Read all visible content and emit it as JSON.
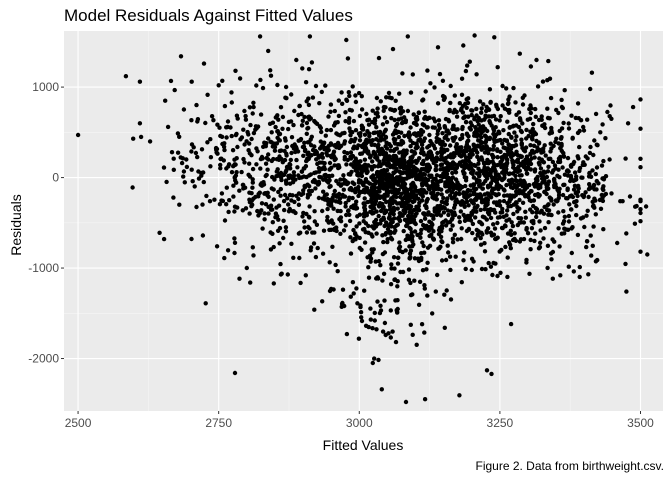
{
  "chart_data": {
    "type": "scatter",
    "title": "Model Residuals Against Fitted Values",
    "xlabel": "Fitted Values",
    "ylabel": "Residuals",
    "caption": "Figure 2. Data from birthweight.csv.",
    "xlim": [
      2475,
      3540
    ],
    "ylim": [
      -2580,
      1620
    ],
    "x_ticks": [
      2500,
      2750,
      3000,
      3250,
      3500
    ],
    "y_ticks": [
      -2000,
      -1000,
      0,
      1000
    ],
    "x_tick_labels": [
      "2500",
      "2750",
      "3000",
      "3250",
      "3500"
    ],
    "y_tick_labels": [
      "-2000",
      "-1000",
      "0",
      "1000"
    ],
    "grid": true,
    "legend": "none",
    "colors": {
      "panel": "#ebebeb",
      "grid_major": "#ffffff",
      "grid_minor": "#f5f5f5",
      "point": "#000000",
      "tick_label": "#4d4d4d"
    },
    "series": [
      {
        "points": [
          [
            2500,
            470
          ],
          [
            2585,
            1120
          ],
          [
            2597,
            -110
          ],
          [
            2598,
            430
          ],
          [
            2610,
            1060
          ],
          [
            2612,
            450
          ],
          [
            2610,
            600
          ],
          [
            2628,
            400
          ],
          [
            2645,
            -610
          ],
          [
            2653,
            -680
          ],
          [
            2655,
            850
          ],
          [
            2660,
            560
          ],
          [
            2667,
            280
          ],
          [
            2680,
            -300
          ],
          [
            2683,
            1340
          ],
          [
            2685,
            160
          ],
          [
            2702,
            1060
          ],
          [
            2712,
            620
          ],
          [
            2722,
            -640
          ],
          [
            2724,
            1260
          ],
          [
            2727,
            -1390
          ],
          [
            2750,
            1020
          ],
          [
            2760,
            -890
          ],
          [
            2779,
            -2160
          ],
          [
            2780,
            1180
          ],
          [
            2800,
            -1000
          ],
          [
            2812,
            -860
          ],
          [
            2838,
            1400
          ],
          [
            2848,
            -1170
          ],
          [
            2888,
            1300
          ],
          [
            2905,
            -1080
          ],
          [
            2920,
            -1460
          ],
          [
            2950,
            -1230
          ],
          [
            2977,
            1520
          ],
          [
            2978,
            -1730
          ],
          [
            2990,
            -1280
          ],
          [
            3035,
            1320
          ],
          [
            3040,
            -2340
          ],
          [
            3060,
            1420
          ],
          [
            3083,
            -2480
          ],
          [
            3117,
            -2450
          ],
          [
            3140,
            1440
          ],
          [
            3152,
            -1660
          ],
          [
            3162,
            -1020
          ],
          [
            3185,
            1460
          ],
          [
            3205,
            1570
          ],
          [
            3227,
            -2130
          ],
          [
            3235,
            -2170
          ],
          [
            3240,
            1550
          ],
          [
            3270,
            -1620
          ],
          [
            3315,
            1300
          ],
          [
            3360,
            -620
          ],
          [
            3385,
            660
          ],
          [
            3392,
            -990
          ],
          [
            3445,
            200
          ],
          [
            3475,
            -1260
          ],
          [
            3478,
            600
          ],
          [
            3490,
            -510
          ],
          [
            3510,
            -320
          ],
          [
            3512,
            -850
          ]
        ],
        "clusters": [
          {
            "x_mean": 3070,
            "x_sd": 55,
            "y_mean": -40,
            "y_sd": 420,
            "n": 1050
          },
          {
            "x_mean": 3225,
            "x_sd": 70,
            "y_mean": 60,
            "y_sd": 450,
            "n": 1050
          },
          {
            "x_mean": 2800,
            "x_sd": 65,
            "y_mean": 160,
            "y_sd": 430,
            "n": 300
          },
          {
            "x_mean": 2935,
            "x_sd": 55,
            "y_mean": 40,
            "y_sd": 470,
            "n": 420
          },
          {
            "x_mean": 3360,
            "x_sd": 65,
            "y_mean": -60,
            "y_sd": 440,
            "n": 300
          },
          {
            "x_mean": 3050,
            "x_sd": 50,
            "y_mean": -1500,
            "y_sd": 300,
            "n": 70
          }
        ]
      }
    ]
  }
}
